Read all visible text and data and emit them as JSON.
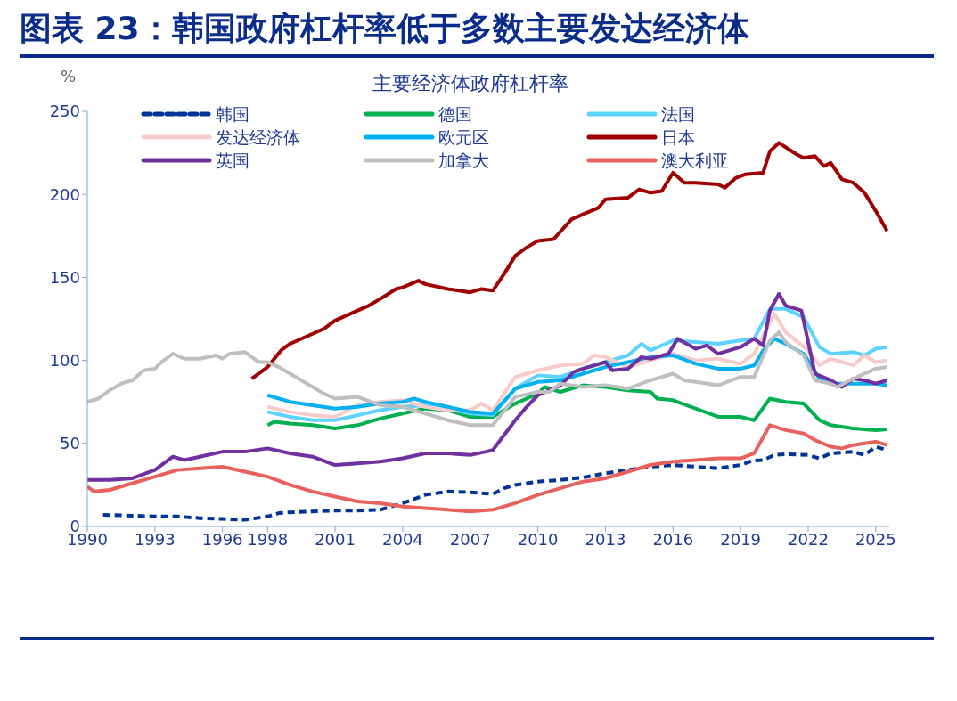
{
  "chart_data": {
    "type": "line",
    "title": "图表 23：韩国政府杠杆率低于多数主要发达经济体",
    "subtitle": "主要经济体政府杠杆率",
    "ylabel": "%",
    "xlim": [
      1990,
      2025.6
    ],
    "xticks": [
      1990,
      1993,
      1996,
      1998,
      2001,
      2004,
      2007,
      2010,
      2013,
      2016,
      2019,
      2022,
      2025
    ],
    "ylim": [
      0,
      250
    ],
    "yticks": [
      0,
      50,
      100,
      150,
      200,
      250
    ],
    "grid": false,
    "legend": "top",
    "marker": "none",
    "series": [
      {
        "name": "韩国",
        "color": "#003399",
        "line_style": "dashed",
        "x": [
          1990.7,
          1992,
          1993,
          1994,
          1995,
          1996,
          1997,
          1998,
          1998.5,
          1999,
          2000,
          2001,
          2002,
          2003,
          2004,
          2005,
          2006,
          2007,
          2008,
          2008.5,
          2009,
          2010,
          2011,
          2012,
          2013,
          2014,
          2015,
          2016,
          2017,
          2018,
          2019,
          2019.5,
          2020,
          2020.5,
          2021,
          2022,
          2022.5,
          2023,
          2024,
          2024.5,
          2025,
          2025.5
        ],
        "values": [
          7,
          6.5,
          6,
          6,
          5,
          4.5,
          4,
          6,
          8,
          8.5,
          9,
          9.5,
          9.5,
          10,
          14,
          19,
          21,
          20.5,
          19.5,
          23,
          25,
          27,
          28,
          29.5,
          32,
          34,
          36,
          37,
          36,
          35,
          37,
          39.5,
          40,
          43,
          43.5,
          43,
          41,
          44,
          45,
          43,
          48,
          46
        ]
      },
      {
        "name": "德国",
        "color": "#00b050",
        "x": [
          1998,
          1998.3,
          1999,
          2000,
          2001,
          2002,
          2003,
          2004,
          2005,
          2006,
          2007,
          2008,
          2009,
          2010,
          2010.3,
          2011,
          2012,
          2013,
          2014,
          2015,
          2015.3,
          2016,
          2017,
          2018,
          2019,
          2019.6,
          2020.3,
          2021,
          2021.8,
          2022.5,
          2023,
          2024,
          2025,
          2025.5
        ],
        "values": [
          61,
          63,
          62,
          61,
          59,
          61,
          65,
          68,
          71,
          70,
          66,
          66,
          74,
          80,
          84,
          81,
          85,
          84,
          82,
          81,
          77,
          76,
          71,
          66,
          66,
          64,
          77,
          75,
          74,
          64,
          61,
          59,
          58,
          58.5
        ]
      },
      {
        "name": "法国",
        "color": "#5cd3ff",
        "x": [
          1998,
          1999,
          2000,
          2001,
          2002,
          2003,
          2004,
          2005,
          2006,
          2007,
          2008,
          2009,
          2010,
          2011,
          2012,
          2013,
          2014,
          2014.6,
          2015,
          2016,
          2017,
          2018,
          2019,
          2019.6,
          2020.3,
          2021,
          2021.8,
          2022.5,
          2023,
          2024,
          2024.5,
          2025,
          2025.5
        ],
        "values": [
          69,
          66,
          64,
          64,
          67,
          70,
          72,
          73,
          71,
          68,
          67,
          83,
          91,
          90,
          95,
          99,
          103,
          110,
          106,
          112,
          111,
          110,
          112,
          113,
          131,
          131,
          126,
          108,
          104,
          105,
          103,
          107,
          108
        ]
      },
      {
        "name": "发达经济体",
        "color": "#f8cbcb",
        "x": [
          1998,
          1999,
          2000,
          2001,
          2002,
          2003,
          2004,
          2005,
          2006,
          2007,
          2007.5,
          2008,
          2009,
          2010,
          2011,
          2012,
          2012.5,
          2013,
          2014,
          2015,
          2016,
          2017,
          2018,
          2019,
          2019.6,
          2020.5,
          2021,
          2022,
          2022.5,
          2023,
          2024,
          2024.5,
          2025,
          2025.5
        ],
        "values": [
          72,
          69,
          67,
          66,
          73,
          75,
          76,
          72,
          70,
          70,
          74,
          70,
          90,
          94,
          97,
          98,
          103,
          102,
          96,
          100,
          104,
          100,
          101,
          98,
          104,
          128,
          117,
          106,
          97,
          101,
          97,
          103,
          99,
          100
        ]
      },
      {
        "name": "欧元区",
        "color": "#00b0f0",
        "x": [
          1998,
          1999,
          2000,
          2001,
          2002,
          2003,
          2004,
          2004.5,
          2005,
          2006,
          2007,
          2008,
          2009,
          2010,
          2011,
          2012,
          2013,
          2014,
          2015,
          2016,
          2017,
          2018,
          2019,
          2019.6,
          2020,
          2020.5,
          2021,
          2021.8,
          2022.5,
          2023,
          2024,
          2025,
          2025.5
        ],
        "values": [
          79,
          75,
          73,
          71,
          72,
          74,
          75,
          77,
          75,
          72,
          69,
          68,
          83,
          87,
          88,
          92,
          96,
          99,
          102,
          103,
          98,
          95,
          95,
          97,
          106,
          113,
          110,
          104,
          89,
          86,
          86,
          86,
          85
        ]
      },
      {
        "name": "日本",
        "color": "#a00000",
        "x": [
          1997.3,
          1998,
          1998.6,
          1999,
          2000,
          2000.5,
          2001,
          2002,
          2002.5,
          2003,
          2003.7,
          2004,
          2004.7,
          2005,
          2006,
          2007,
          2007.5,
          2008,
          2008.5,
          2009,
          2009.5,
          2010,
          2010.7,
          2011.5,
          2012,
          2012.7,
          2013,
          2014,
          2014.5,
          2015,
          2015.5,
          2016,
          2016.5,
          2017,
          2018,
          2018.3,
          2018.8,
          2019.2,
          2020,
          2020.3,
          2020.7,
          2021.5,
          2021.8,
          2022.3,
          2022.7,
          2023,
          2023.5,
          2024,
          2024.5,
          2025,
          2025.5
        ],
        "values": [
          89,
          96,
          106,
          110,
          116,
          119,
          124,
          130,
          133,
          137,
          143,
          144,
          148,
          146,
          143,
          141,
          143,
          142,
          152,
          163,
          168,
          172,
          173,
          185,
          188,
          192,
          197,
          198,
          203,
          201,
          202,
          213,
          207,
          207,
          206,
          204,
          210,
          212,
          213,
          226,
          231,
          224,
          222,
          223,
          217,
          219,
          209,
          207,
          201,
          190,
          178
        ]
      },
      {
        "name": "英国",
        "color": "#7030a0",
        "x": [
          1990,
          1991,
          1992,
          1993,
          1993.8,
          1994.3,
          1995,
          1996,
          1997,
          1998,
          1999,
          2000,
          2001,
          2002,
          2003,
          2004,
          2005,
          2006,
          2007,
          2007.7,
          2008,
          2008.5,
          2009,
          2009.5,
          2010,
          2011,
          2011.6,
          2012,
          2013,
          2013.3,
          2014,
          2014.6,
          2015,
          2015.8,
          2016.2,
          2017,
          2017.5,
          2018,
          2019,
          2019.6,
          2020,
          2020.3,
          2020.7,
          2021,
          2021.7,
          2022.3,
          2023,
          2023.5,
          2024,
          2024.5,
          2025,
          2025.5
        ],
        "values": [
          28,
          28,
          29,
          34,
          42,
          40,
          42,
          45,
          45,
          47,
          44,
          42,
          37,
          38,
          39,
          41,
          44,
          44,
          43,
          45,
          46,
          55,
          64,
          72,
          79,
          85,
          93,
          95,
          99,
          94,
          95,
          102,
          101,
          104,
          113,
          107,
          109,
          104,
          108,
          113,
          109,
          130,
          140,
          133,
          130,
          92,
          88,
          84,
          89,
          88,
          86,
          88
        ]
      },
      {
        "name": "加拿大",
        "color": "#bfbfbf",
        "x": [
          1990,
          1990.5,
          1991,
          1991.5,
          1992,
          1992.5,
          1993,
          1993.3,
          1993.8,
          1994.3,
          1995,
          1995.7,
          1996,
          1996.3,
          1997,
          1997.6,
          1998,
          1998.5,
          1999,
          2000,
          2000.5,
          2001,
          2002,
          2003,
          2004,
          2005,
          2006,
          2007,
          2008,
          2009,
          2010,
          2010.5,
          2011,
          2012,
          2013,
          2014,
          2015,
          2016,
          2016.5,
          2017,
          2018,
          2019,
          2019.6,
          2020.3,
          2020.7,
          2021,
          2021.8,
          2022.3,
          2023,
          2023.3,
          2024,
          2025,
          2025.5
        ],
        "values": [
          75,
          77,
          82,
          86,
          88,
          94,
          95,
          99,
          104,
          101,
          101,
          103,
          101,
          104,
          105,
          99,
          99,
          96,
          92,
          84,
          80,
          77,
          78,
          73,
          72,
          68,
          64,
          61,
          61,
          78,
          81,
          81,
          86,
          84,
          85,
          83,
          88,
          92,
          88,
          87,
          85,
          90,
          90,
          112,
          117,
          111,
          103,
          88,
          86,
          84,
          89,
          95,
          96
        ]
      },
      {
        "name": "澳大利亚",
        "color": "#e8615d",
        "x": [
          1990,
          1990.3,
          1991,
          1992,
          1993,
          1994,
          1995,
          1996,
          1997,
          1998,
          1999,
          2000,
          2001,
          2002,
          2003,
          2004,
          2005,
          2006,
          2007,
          2008,
          2009,
          2010,
          2011,
          2012,
          2013,
          2014,
          2015,
          2016,
          2017,
          2018,
          2019,
          2019.6,
          2020.3,
          2021,
          2021.8,
          2022.3,
          2023,
          2023.5,
          2024,
          2024.5,
          2025,
          2025.5
        ],
        "values": [
          24,
          21,
          22,
          26,
          30,
          34,
          35,
          36,
          33,
          30,
          25,
          21,
          18,
          15,
          14,
          12,
          11,
          10,
          9,
          10,
          14,
          19,
          23,
          27,
          29,
          33,
          37,
          39,
          40,
          41,
          41,
          44,
          61,
          58,
          56,
          52,
          48,
          47,
          49,
          50,
          51,
          49
        ]
      }
    ]
  }
}
